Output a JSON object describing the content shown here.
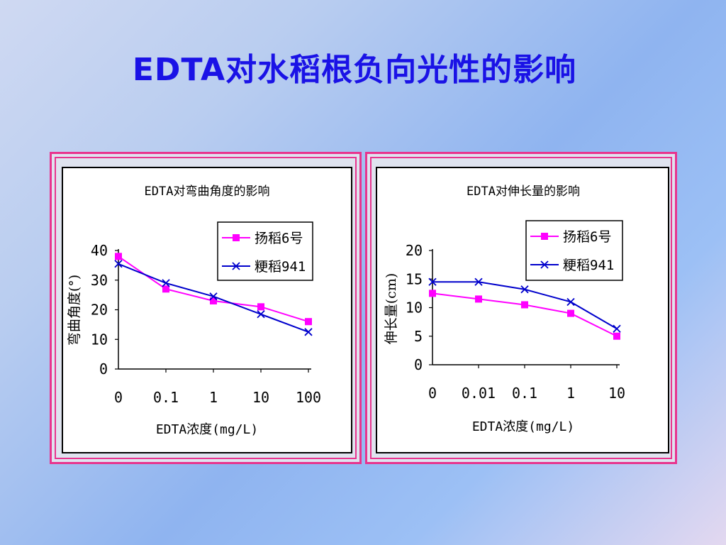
{
  "slide": {
    "title": "EDTA对水稻根负向光性的影响"
  },
  "colors": {
    "title": "#1a12e6",
    "frame_border": "#e8348e",
    "series_a": "#ff00ff",
    "series_b": "#0000cc"
  },
  "chart_data": [
    {
      "type": "line",
      "title": "EDTA对弯曲角度的影响",
      "xlabel": "EDTA浓度(mg/L)",
      "ylabel": "弯曲角度(°)",
      "categories": [
        "0",
        "0.1",
        "1",
        "10",
        "100"
      ],
      "ylim": [
        0,
        40
      ],
      "yticks": [
        "0",
        "10",
        "20",
        "30",
        "40"
      ],
      "legend_position": "top-right",
      "grid": false,
      "series": [
        {
          "name": "扬稻6号",
          "marker": "square",
          "values": [
            38,
            27,
            23,
            21,
            16
          ]
        },
        {
          "name": "粳稻941",
          "marker": "x",
          "values": [
            35.5,
            29,
            24.5,
            18.5,
            12.5
          ]
        }
      ]
    },
    {
      "type": "line",
      "title": "EDTA对伸长量的影响",
      "xlabel": "EDTA浓度(mg/L)",
      "ylabel": "伸长量(cm)",
      "categories": [
        "0",
        "0.01",
        "0.1",
        "1",
        "10"
      ],
      "ylim": [
        0,
        20
      ],
      "yticks": [
        "0",
        "5",
        "10",
        "15",
        "20"
      ],
      "legend_position": "top-right",
      "grid": false,
      "series": [
        {
          "name": "扬稻6号",
          "marker": "square",
          "values": [
            12.5,
            11.5,
            10.5,
            9,
            5
          ]
        },
        {
          "name": "粳稻941",
          "marker": "x",
          "values": [
            14.5,
            14.5,
            13.2,
            11,
            6.3
          ]
        }
      ]
    }
  ]
}
